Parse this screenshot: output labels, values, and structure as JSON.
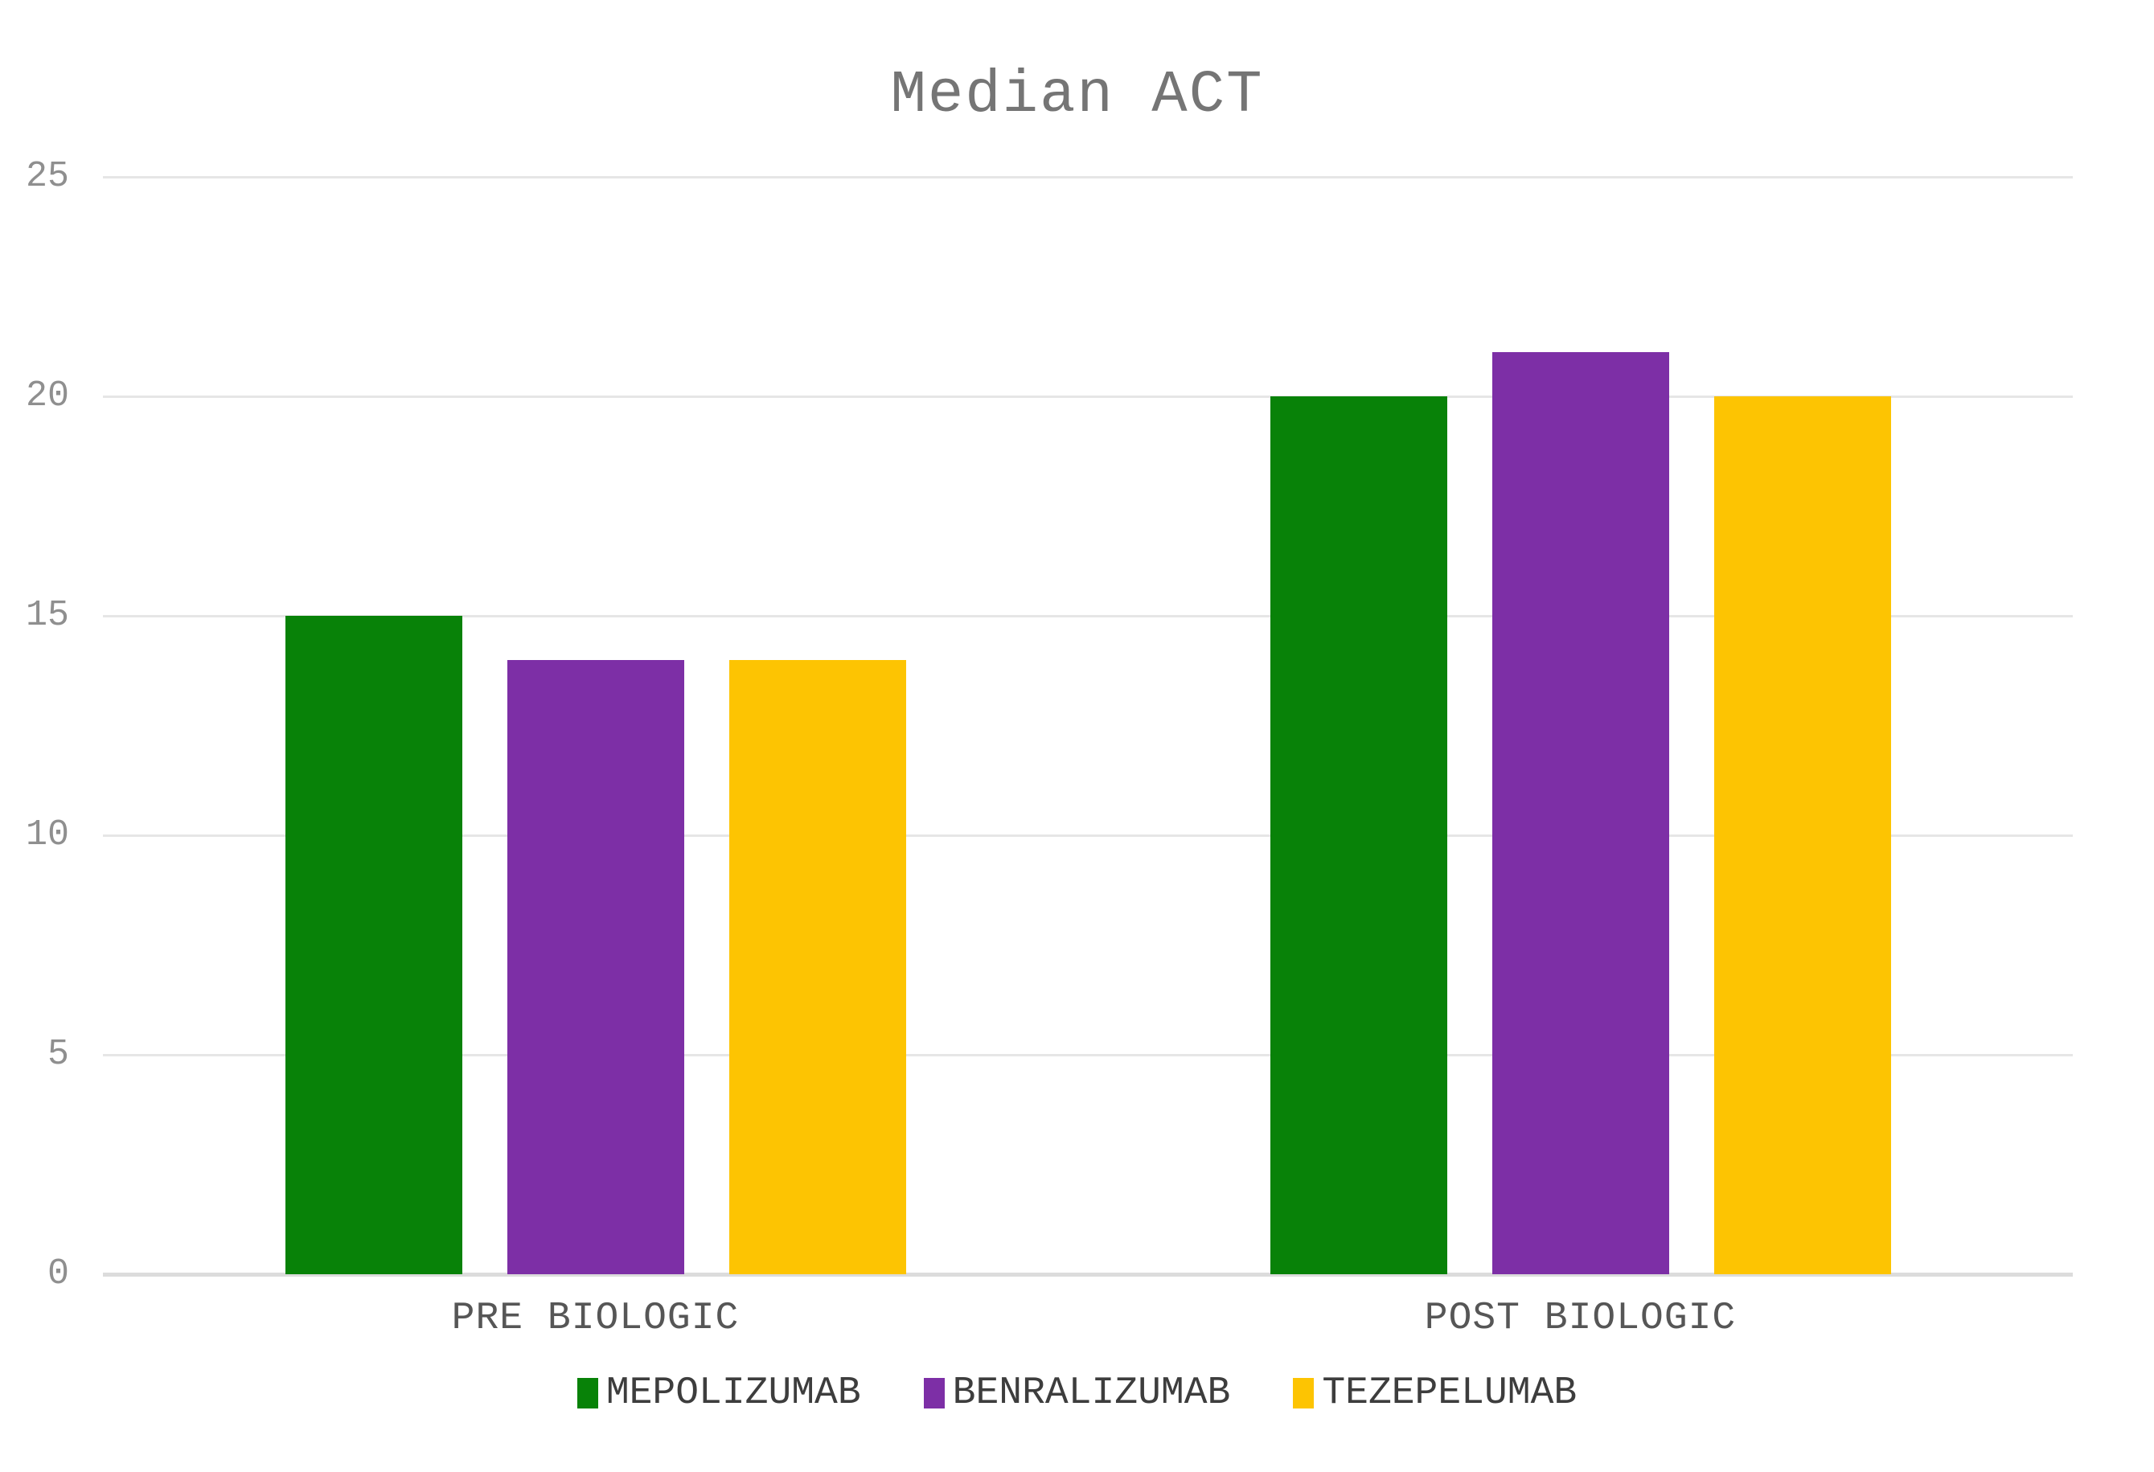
{
  "chart_data": {
    "type": "bar",
    "title": "Median ACT",
    "categories": [
      "PRE BIOLOGIC",
      "POST BIOLOGIC"
    ],
    "series": [
      {
        "name": "MEPOLIZUMAB",
        "color": "#088208",
        "values": [
          15,
          20
        ]
      },
      {
        "name": "BENRALIZUMAB",
        "color": "#7d2fa6",
        "values": [
          14,
          21
        ]
      },
      {
        "name": "TEZEPELUMAB",
        "color": "#fdc402",
        "values": [
          14,
          20
        ]
      }
    ],
    "xlabel": "",
    "ylabel": "",
    "ylim": [
      0,
      25
    ],
    "yticks": [
      0,
      5,
      10,
      15,
      20,
      25
    ],
    "grid": true,
    "legend_position": "bottom"
  },
  "colors": {
    "background": "#ffffff",
    "title_text": "#757575",
    "axis_tick_text": "#8f8f8f",
    "category_label_text": "#565656",
    "legend_text": "#3d3d3d",
    "gridline": "#e6e6e6",
    "baseline": "#dcdcdc"
  }
}
